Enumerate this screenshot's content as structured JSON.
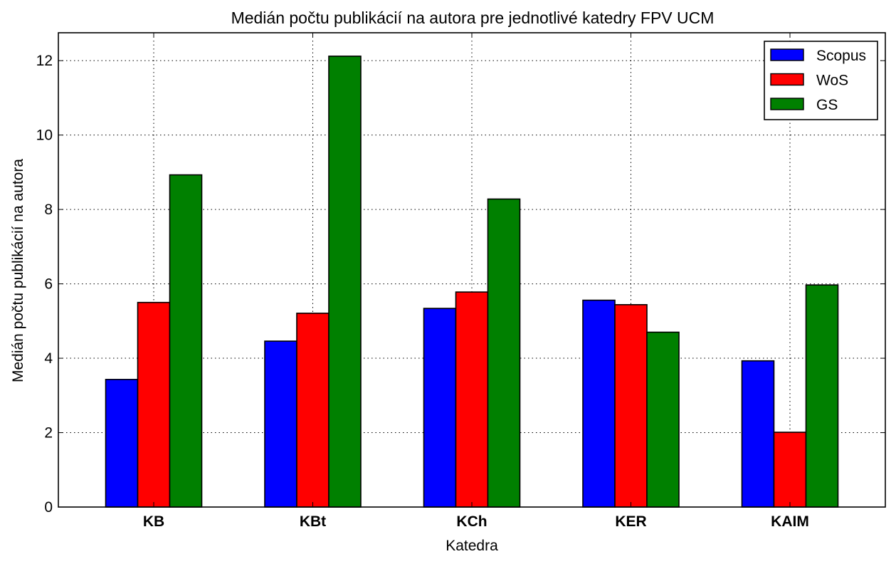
{
  "chart_data": {
    "type": "bar",
    "title": "Medián počtu publikácií na autora pre jednotlivé katedry FPV UCM",
    "xlabel": "Katedra",
    "ylabel": "Medián počtu publikácií na autora",
    "categories": [
      "KB",
      "KBt",
      "KCh",
      "KER",
      "KAIM"
    ],
    "ylim": [
      0,
      12.75
    ],
    "yticks": [
      0,
      2,
      4,
      6,
      8,
      10,
      12
    ],
    "grid": true,
    "legend_position": "top-right",
    "series": [
      {
        "name": "Scopus",
        "color": "#0000ff",
        "values": [
          3.43,
          4.46,
          5.34,
          5.56,
          3.93
        ]
      },
      {
        "name": "WoS",
        "color": "#ff0000",
        "values": [
          5.5,
          5.21,
          5.78,
          5.44,
          2.01
        ]
      },
      {
        "name": "GS",
        "color": "#008000",
        "values": [
          8.93,
          12.12,
          8.28,
          4.7,
          5.97
        ]
      }
    ]
  }
}
